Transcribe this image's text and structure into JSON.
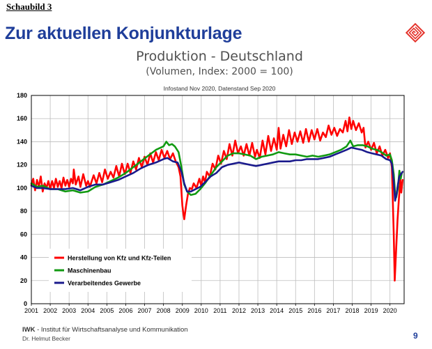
{
  "header": {
    "figure_label": "Schaubild 3",
    "slide_title": "Zur aktuellen Konjunkturlage"
  },
  "footer": {
    "org_abbrev": "IWK",
    "org_text": " - Institut für Wirtschaftsanalyse und Kommunikation",
    "author": "Dr. Helmut Becker",
    "page_number": "9"
  },
  "colors": {
    "title": "#1f3e9a",
    "series_kfz": "#ff0000",
    "series_maschinenbau": "#119a11",
    "series_gewerbe": "#1a1a8c",
    "logo": "#e4322b"
  },
  "chart_data": {
    "type": "line",
    "title": "Produktion - Deutschland",
    "subtitle": "(Volumen, Index: 2000 = 100)",
    "info": "Infostand Nov 2020, Datenstand Sep 2020",
    "x_tick_labels": [
      "2001",
      "2002",
      "2003",
      "2004",
      "2005",
      "2006",
      "2007",
      "2008",
      "2009",
      "2010",
      "2011",
      "2012",
      "2013",
      "2014",
      "2015",
      "2016",
      "2017",
      "2018",
      "2019",
      "2020"
    ],
    "y_tick_labels": [
      "0",
      "20",
      "40",
      "60",
      "80",
      "100",
      "120",
      "140",
      "160",
      "180"
    ],
    "xlim": [
      2001,
      2020.75
    ],
    "ylim": [
      0,
      180
    ],
    "grid": true,
    "legend_position": "bottom-left",
    "series": [
      {
        "name": "Herstellung von Kfz und Kfz-Teilen",
        "color": "#ff0000",
        "points": [
          [
            2001.0,
            103
          ],
          [
            2001.1,
            108
          ],
          [
            2001.2,
            98
          ],
          [
            2001.3,
            107
          ],
          [
            2001.4,
            101
          ],
          [
            2001.5,
            110
          ],
          [
            2001.6,
            97
          ],
          [
            2001.7,
            104
          ],
          [
            2001.8,
            100
          ],
          [
            2001.9,
            106
          ],
          [
            2002.0,
            99
          ],
          [
            2002.1,
            106
          ],
          [
            2002.2,
            100
          ],
          [
            2002.3,
            108
          ],
          [
            2002.4,
            101
          ],
          [
            2002.5,
            106
          ],
          [
            2002.6,
            100
          ],
          [
            2002.7,
            109
          ],
          [
            2002.8,
            102
          ],
          [
            2002.9,
            107
          ],
          [
            2003.0,
            101
          ],
          [
            2003.1,
            108
          ],
          [
            2003.2,
            104
          ],
          [
            2003.25,
            116
          ],
          [
            2003.35,
            103
          ],
          [
            2003.5,
            110
          ],
          [
            2003.6,
            101
          ],
          [
            2003.75,
            112
          ],
          [
            2003.9,
            102
          ],
          [
            2004.0,
            106
          ],
          [
            2004.1,
            101
          ],
          [
            2004.3,
            111
          ],
          [
            2004.45,
            104
          ],
          [
            2004.6,
            113
          ],
          [
            2004.75,
            105
          ],
          [
            2004.9,
            116
          ],
          [
            2005.05,
            108
          ],
          [
            2005.2,
            114
          ],
          [
            2005.35,
            109
          ],
          [
            2005.5,
            119
          ],
          [
            2005.65,
            110
          ],
          [
            2005.8,
            121
          ],
          [
            2005.95,
            112
          ],
          [
            2006.1,
            121
          ],
          [
            2006.25,
            113
          ],
          [
            2006.4,
            123
          ],
          [
            2006.55,
            116
          ],
          [
            2006.7,
            126
          ],
          [
            2006.85,
            118
          ],
          [
            2007.0,
            127
          ],
          [
            2007.15,
            120
          ],
          [
            2007.3,
            130
          ],
          [
            2007.45,
            122
          ],
          [
            2007.6,
            131
          ],
          [
            2007.75,
            124
          ],
          [
            2007.9,
            133
          ],
          [
            2008.05,
            126
          ],
          [
            2008.2,
            132
          ],
          [
            2008.35,
            125
          ],
          [
            2008.5,
            130
          ],
          [
            2008.65,
            123
          ],
          [
            2008.8,
            118
          ],
          [
            2008.9,
            110
          ],
          [
            2009.0,
            85
          ],
          [
            2009.05,
            78
          ],
          [
            2009.1,
            73
          ],
          [
            2009.2,
            85
          ],
          [
            2009.3,
            95
          ],
          [
            2009.4,
            100
          ],
          [
            2009.5,
            99
          ],
          [
            2009.6,
            104
          ],
          [
            2009.75,
            100
          ],
          [
            2009.9,
            108
          ],
          [
            2010.0,
            102
          ],
          [
            2010.1,
            110
          ],
          [
            2010.2,
            105
          ],
          [
            2010.3,
            114
          ],
          [
            2010.45,
            110
          ],
          [
            2010.6,
            121
          ],
          [
            2010.75,
            116
          ],
          [
            2010.9,
            128
          ],
          [
            2011.05,
            121
          ],
          [
            2011.2,
            132
          ],
          [
            2011.35,
            125
          ],
          [
            2011.5,
            138
          ],
          [
            2011.65,
            128
          ],
          [
            2011.8,
            141
          ],
          [
            2011.95,
            130
          ],
          [
            2012.1,
            136
          ],
          [
            2012.25,
            128
          ],
          [
            2012.4,
            138
          ],
          [
            2012.55,
            128
          ],
          [
            2012.7,
            139
          ],
          [
            2012.85,
            127
          ],
          [
            2012.95,
            133
          ],
          [
            2013.1,
            126
          ],
          [
            2013.25,
            141
          ],
          [
            2013.4,
            129
          ],
          [
            2013.55,
            145
          ],
          [
            2013.7,
            132
          ],
          [
            2013.85,
            143
          ],
          [
            2014.0,
            133
          ],
          [
            2014.1,
            152
          ],
          [
            2014.2,
            134
          ],
          [
            2014.35,
            146
          ],
          [
            2014.5,
            136
          ],
          [
            2014.65,
            150
          ],
          [
            2014.8,
            138
          ],
          [
            2014.95,
            148
          ],
          [
            2015.1,
            140
          ],
          [
            2015.25,
            149
          ],
          [
            2015.4,
            139
          ],
          [
            2015.55,
            151
          ],
          [
            2015.7,
            140
          ],
          [
            2015.85,
            150
          ],
          [
            2016.0,
            142
          ],
          [
            2016.15,
            151
          ],
          [
            2016.3,
            141
          ],
          [
            2016.45,
            148
          ],
          [
            2016.6,
            144
          ],
          [
            2016.75,
            154
          ],
          [
            2016.9,
            146
          ],
          [
            2017.05,
            152
          ],
          [
            2017.2,
            145
          ],
          [
            2017.35,
            151
          ],
          [
            2017.5,
            148
          ],
          [
            2017.65,
            158
          ],
          [
            2017.75,
            149
          ],
          [
            2017.85,
            161
          ],
          [
            2017.95,
            151
          ],
          [
            2018.05,
            158
          ],
          [
            2018.2,
            150
          ],
          [
            2018.35,
            156
          ],
          [
            2018.5,
            148
          ],
          [
            2018.6,
            152
          ],
          [
            2018.7,
            135
          ],
          [
            2018.85,
            140
          ],
          [
            2019.0,
            133
          ],
          [
            2019.15,
            139
          ],
          [
            2019.3,
            130
          ],
          [
            2019.45,
            136
          ],
          [
            2019.6,
            128
          ],
          [
            2019.75,
            133
          ],
          [
            2019.9,
            126
          ],
          [
            2020.0,
            130
          ],
          [
            2020.1,
            118
          ],
          [
            2020.2,
            60
          ],
          [
            2020.25,
            20
          ],
          [
            2020.32,
            45
          ],
          [
            2020.4,
            72
          ],
          [
            2020.47,
            90
          ],
          [
            2020.55,
            107
          ],
          [
            2020.6,
            96
          ],
          [
            2020.67,
            107
          ]
        ]
      },
      {
        "name": "Maschinenbau",
        "color": "#119a11",
        "points": [
          [
            2001.0,
            104
          ],
          [
            2001.3,
            101
          ],
          [
            2001.6,
            102
          ],
          [
            2002.0,
            99
          ],
          [
            2002.4,
            99
          ],
          [
            2002.8,
            97
          ],
          [
            2003.2,
            98
          ],
          [
            2003.6,
            96
          ],
          [
            2004.0,
            97
          ],
          [
            2004.4,
            101
          ],
          [
            2004.8,
            103
          ],
          [
            2005.2,
            106
          ],
          [
            2005.6,
            109
          ],
          [
            2006.0,
            113
          ],
          [
            2006.4,
            118
          ],
          [
            2006.8,
            123
          ],
          [
            2007.2,
            128
          ],
          [
            2007.6,
            133
          ],
          [
            2008.0,
            136
          ],
          [
            2008.15,
            140
          ],
          [
            2008.3,
            137
          ],
          [
            2008.45,
            138
          ],
          [
            2008.6,
            136
          ],
          [
            2008.8,
            131
          ],
          [
            2008.95,
            118
          ],
          [
            2009.1,
            103
          ],
          [
            2009.25,
            97
          ],
          [
            2009.45,
            94
          ],
          [
            2009.7,
            95
          ],
          [
            2009.95,
            99
          ],
          [
            2010.2,
            104
          ],
          [
            2010.5,
            111
          ],
          [
            2010.8,
            118
          ],
          [
            2011.1,
            123
          ],
          [
            2011.4,
            128
          ],
          [
            2011.7,
            130
          ],
          [
            2012.0,
            130
          ],
          [
            2012.3,
            129
          ],
          [
            2012.6,
            128
          ],
          [
            2012.9,
            125
          ],
          [
            2013.2,
            127
          ],
          [
            2013.5,
            128
          ],
          [
            2013.8,
            129
          ],
          [
            2014.1,
            131
          ],
          [
            2014.4,
            130
          ],
          [
            2014.7,
            129
          ],
          [
            2015.0,
            129
          ],
          [
            2015.3,
            128
          ],
          [
            2015.6,
            127
          ],
          [
            2015.9,
            128
          ],
          [
            2016.2,
            127
          ],
          [
            2016.5,
            128
          ],
          [
            2016.8,
            129
          ],
          [
            2017.1,
            131
          ],
          [
            2017.4,
            133
          ],
          [
            2017.7,
            136
          ],
          [
            2017.9,
            141
          ],
          [
            2018.05,
            136
          ],
          [
            2018.3,
            137
          ],
          [
            2018.55,
            137
          ],
          [
            2018.8,
            136
          ],
          [
            2019.05,
            134
          ],
          [
            2019.3,
            133
          ],
          [
            2019.55,
            131
          ],
          [
            2019.8,
            128
          ],
          [
            2020.0,
            129
          ],
          [
            2020.1,
            124
          ],
          [
            2020.2,
            112
          ],
          [
            2020.27,
            96
          ],
          [
            2020.33,
            92
          ],
          [
            2020.42,
            100
          ],
          [
            2020.5,
            115
          ],
          [
            2020.57,
            108
          ],
          [
            2020.63,
            113
          ]
        ]
      },
      {
        "name": "Verarbeitendes Gewerbe",
        "color": "#1a1a8c",
        "points": [
          [
            2001.0,
            102
          ],
          [
            2001.3,
            100
          ],
          [
            2001.6,
            100
          ],
          [
            2002.0,
            99
          ],
          [
            2002.4,
            99
          ],
          [
            2002.8,
            99
          ],
          [
            2003.2,
            100
          ],
          [
            2003.6,
            98
          ],
          [
            2004.0,
            101
          ],
          [
            2004.4,
            103
          ],
          [
            2004.8,
            103
          ],
          [
            2005.2,
            105
          ],
          [
            2005.6,
            107
          ],
          [
            2006.0,
            110
          ],
          [
            2006.4,
            113
          ],
          [
            2006.8,
            117
          ],
          [
            2007.2,
            120
          ],
          [
            2007.6,
            122
          ],
          [
            2008.0,
            125
          ],
          [
            2008.2,
            126
          ],
          [
            2008.5,
            123
          ],
          [
            2008.75,
            122
          ],
          [
            2008.95,
            114
          ],
          [
            2009.1,
            104
          ],
          [
            2009.25,
            97
          ],
          [
            2009.45,
            97
          ],
          [
            2009.7,
            99
          ],
          [
            2009.95,
            101
          ],
          [
            2010.2,
            105
          ],
          [
            2010.5,
            110
          ],
          [
            2010.8,
            113
          ],
          [
            2011.1,
            118
          ],
          [
            2011.4,
            120
          ],
          [
            2011.7,
            121
          ],
          [
            2012.0,
            122
          ],
          [
            2012.3,
            121
          ],
          [
            2012.6,
            120
          ],
          [
            2012.9,
            119
          ],
          [
            2013.2,
            120
          ],
          [
            2013.5,
            121
          ],
          [
            2013.8,
            122
          ],
          [
            2014.1,
            123
          ],
          [
            2014.4,
            123
          ],
          [
            2014.7,
            123
          ],
          [
            2015.0,
            124
          ],
          [
            2015.3,
            124
          ],
          [
            2015.6,
            125
          ],
          [
            2015.9,
            125
          ],
          [
            2016.2,
            125
          ],
          [
            2016.5,
            126
          ],
          [
            2016.8,
            127
          ],
          [
            2017.1,
            129
          ],
          [
            2017.4,
            131
          ],
          [
            2017.7,
            133
          ],
          [
            2017.95,
            135
          ],
          [
            2018.2,
            134
          ],
          [
            2018.5,
            133
          ],
          [
            2018.8,
            131
          ],
          [
            2019.05,
            130
          ],
          [
            2019.3,
            129
          ],
          [
            2019.55,
            128
          ],
          [
            2019.8,
            125
          ],
          [
            2020.0,
            124
          ],
          [
            2020.1,
            121
          ],
          [
            2020.2,
            105
          ],
          [
            2020.27,
            89
          ],
          [
            2020.35,
            95
          ],
          [
            2020.42,
            103
          ],
          [
            2020.5,
            110
          ],
          [
            2020.58,
            112
          ],
          [
            2020.67,
            114
          ]
        ]
      }
    ]
  }
}
